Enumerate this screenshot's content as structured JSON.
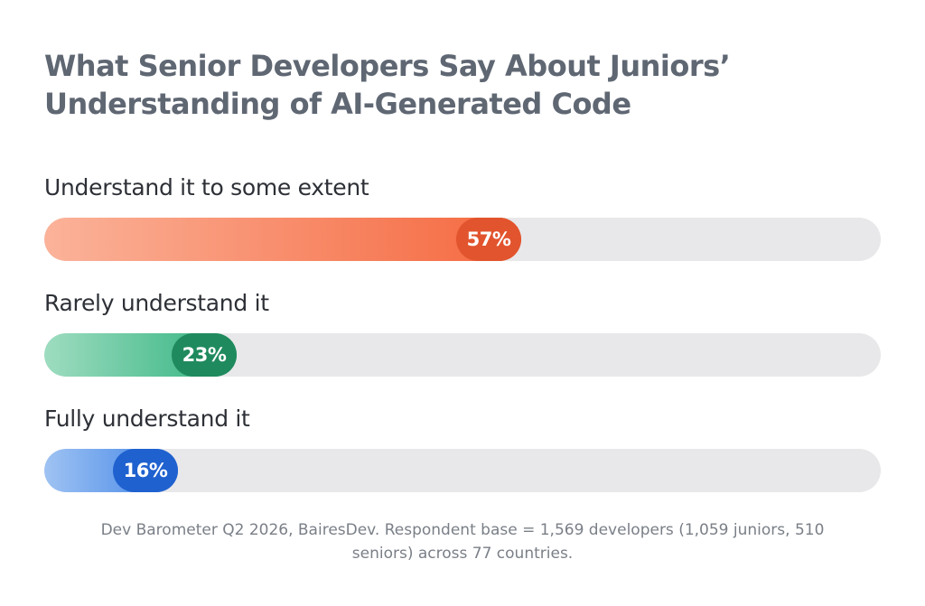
{
  "title_lines": [
    "What Senior Developers Say About Juniors’",
    "Understanding of AI-Generated Code"
  ],
  "footnote_lines": [
    "Dev Barometer Q2 2026, BairesDev. Respondent base = 1,569 developers (1,059 juniors, 510",
    "seniors) across 77 countries."
  ],
  "colors": {
    "track": "#e8e8ea",
    "orange_start": "#fbb39a",
    "orange_end": "#f5683f",
    "orange_pill": "#e2542d",
    "green_start": "#9edcc0",
    "green_end": "#2fb27e",
    "green_pill": "#1f8a5e",
    "blue_start": "#9fc3f3",
    "blue_end": "#3e82e6",
    "blue_pill": "#1f61cf"
  },
  "chart_data": {
    "type": "bar",
    "orientation": "horizontal",
    "categories": [
      "Understand it to some extent",
      "Rarely understand it",
      "Fully understand it"
    ],
    "values": [
      57,
      23,
      16
    ],
    "value_labels": [
      "57%",
      "23%",
      "16%"
    ],
    "xlim": [
      0,
      100
    ],
    "grid": false,
    "legend": "none"
  }
}
